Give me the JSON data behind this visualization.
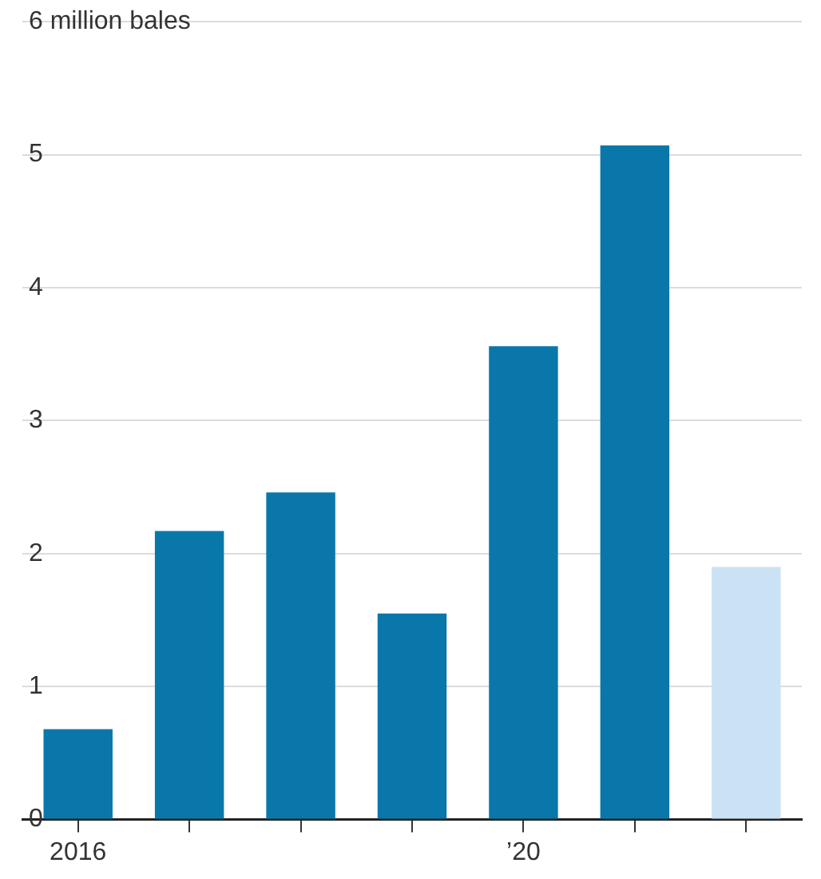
{
  "chart_data": {
    "type": "bar",
    "categories": [
      "2016",
      null,
      null,
      null,
      "’20",
      null,
      null
    ],
    "values": [
      0.68,
      2.17,
      2.46,
      1.55,
      3.56,
      5.07,
      1.9
    ],
    "colors": [
      "#0a77ab",
      "#0a77ab",
      "#0a77ab",
      "#0a77ab",
      "#0a77ab",
      "#0a77ab",
      "#cbe2f4"
    ],
    "ylim": [
      0,
      6
    ],
    "yticks": [
      0,
      1,
      2,
      3,
      4,
      5,
      {
        "value": 6,
        "label": "6 million bales"
      }
    ],
    "grid": "y",
    "legend": false
  }
}
